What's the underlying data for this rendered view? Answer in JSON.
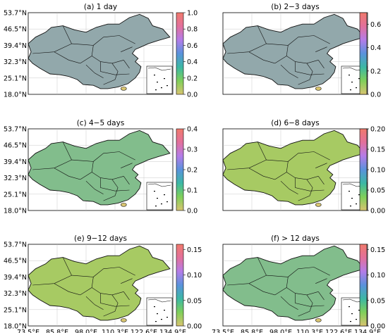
{
  "chart_data": [
    {
      "type": "heatmap",
      "title": "(a) 1 day",
      "colorbar_ticks": [
        "0.0",
        "0.2",
        "0.4",
        "0.6",
        "0.8",
        "1.0"
      ],
      "colorbar_range": [
        0.0,
        1.0
      ],
      "y_tick_labels": [
        "53.7°N",
        "46.5°N",
        "39.4°N",
        "32.3°N",
        "25.1°N",
        "18.0°N"
      ],
      "x_tick_labels": [],
      "dominant_value": 0.5
    },
    {
      "type": "heatmap",
      "title": "(b) 2−3 days",
      "colorbar_ticks": [
        "0.0",
        "0.2",
        "0.4",
        "0.6"
      ],
      "colorbar_range": [
        0.0,
        0.7
      ],
      "y_tick_labels": [],
      "x_tick_labels": [],
      "dominant_value": 0.3
    },
    {
      "type": "heatmap",
      "title": "(c) 4−5 days",
      "colorbar_ticks": [
        "0.0",
        "0.1",
        "0.2",
        "0.3",
        "0.4"
      ],
      "colorbar_range": [
        0.0,
        0.4
      ],
      "y_tick_labels": [
        "53.7°N",
        "46.5°N",
        "39.4°N",
        "32.3°N",
        "25.1°N",
        "18.0°N"
      ],
      "x_tick_labels": [],
      "dominant_value": 0.1
    },
    {
      "type": "heatmap",
      "title": "(d) 6−8 days",
      "colorbar_ticks": [
        "0.00",
        "0.05",
        "0.10",
        "0.15",
        "0.20"
      ],
      "colorbar_range": [
        0.0,
        0.2
      ],
      "y_tick_labels": [],
      "x_tick_labels": [],
      "dominant_value": 0.03
    },
    {
      "type": "heatmap",
      "title": "(e) 9−12 days",
      "colorbar_ticks": [
        "0.00",
        "0.05",
        "0.10",
        "0.15"
      ],
      "colorbar_range": [
        0.0,
        0.16
      ],
      "y_tick_labels": [
        "53.7°N",
        "46.5°N",
        "39.4°N",
        "32.3°N",
        "25.1°N",
        "18.0°N"
      ],
      "x_tick_labels": [
        "73.5°E",
        "85.8°E",
        "98.0°E",
        "110.3°E",
        "122.6°E",
        "134.9°E"
      ],
      "dominant_value": 0.02
    },
    {
      "type": "heatmap",
      "title": "(f) > 12 days",
      "colorbar_ticks": [
        "0.00",
        "0.05",
        "0.10",
        "0.15"
      ],
      "colorbar_range": [
        0.0,
        0.16
      ],
      "y_tick_labels": [],
      "x_tick_labels": [
        "73.5°E",
        "85.8°E",
        "98.0°E",
        "110.3°E",
        "122.6°E",
        "134.9°E"
      ],
      "dominant_value": 0.04
    }
  ],
  "colors": {
    "colormap": [
      "#d8c470",
      "#7fcf5a",
      "#3cb8a4",
      "#5a92dc",
      "#b47ce8",
      "#e2709c",
      "#f07a6c"
    ],
    "land_base": "#d8c470",
    "border": "#111111",
    "grid": "#bbbbbb"
  }
}
